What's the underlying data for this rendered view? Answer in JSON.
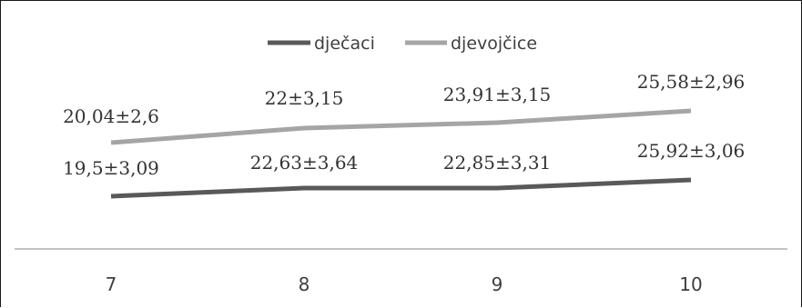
{
  "chart_data": {
    "type": "line",
    "categories": [
      "7",
      "8",
      "9",
      "10"
    ],
    "series": [
      {
        "name": "dječaci",
        "values": [
          19.5,
          22.63,
          22.85,
          25.92
        ],
        "labels": [
          "19,5±3,09",
          "22,63±3,64",
          "22,85±3,31",
          "25,92±3,06"
        ],
        "color": "#595959"
      },
      {
        "name": "djevojčice",
        "values": [
          20.04,
          22,
          23.91,
          25.58
        ],
        "labels": [
          "20,04±2,6",
          "22±3,15",
          "23,91±3,15",
          "25,58±2,96"
        ],
        "color": "#a5a5a5"
      }
    ],
    "legend_position": "top",
    "grid": false,
    "title": "",
    "xlabel": "",
    "ylabel": ""
  }
}
